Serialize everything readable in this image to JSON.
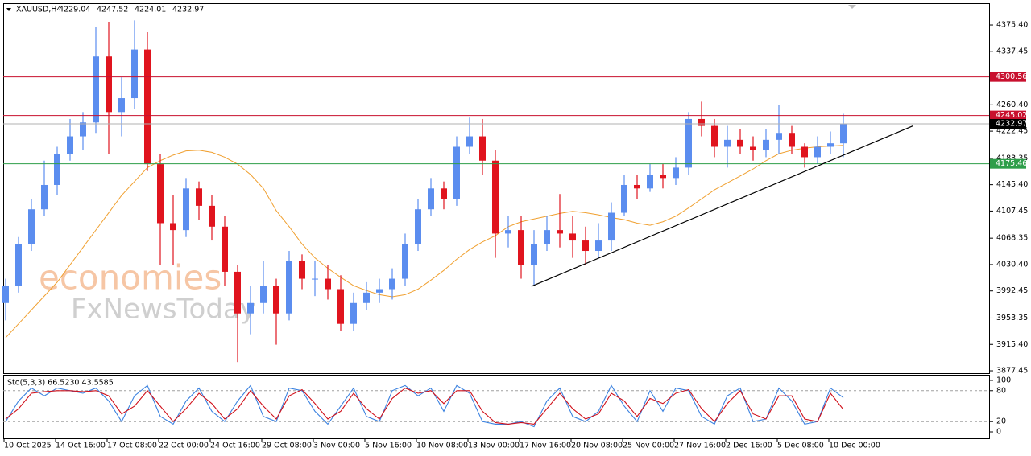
{
  "chart_data": [
    {
      "type": "candlestick",
      "title": "XAUUSD,H4",
      "header_values": [
        4229.04,
        4247.52,
        4224.01,
        4232.97
      ],
      "watermark": [
        "economies",
        "FxNewsToday"
      ],
      "categories": [
        "10 Oct 2025",
        null,
        null,
        null,
        "14 Oct 16:00",
        null,
        null,
        null,
        "17 Oct 08:00",
        null,
        null,
        null,
        "22 Oct 00:00",
        null,
        null,
        null,
        "24 Oct 16:00",
        null,
        null,
        null,
        "29 Oct 08:00",
        null,
        null,
        null,
        "3 Nov 00:00",
        null,
        null,
        null,
        "5 Nov 16:00",
        null,
        null,
        null,
        "10 Nov 08:00",
        null,
        null,
        null,
        "13 Nov 00:00",
        null,
        null,
        null,
        "17 Nov 16:00",
        null,
        null,
        null,
        "20 Nov 08:00",
        null,
        null,
        null,
        "25 Nov 00:00",
        null,
        null,
        null,
        "27 Nov 16:00",
        null,
        null,
        null,
        "2 Dec 16:00",
        null,
        null,
        null,
        "5 Dec 08:00",
        null,
        null,
        null,
        "10 Dec 00:00",
        null
      ],
      "open": [
        3975,
        4000,
        4060,
        4110,
        4145,
        4190,
        4215,
        4235,
        4330,
        4250,
        4270,
        4340,
        4175,
        4090,
        4080,
        4140,
        4115,
        4085,
        4020,
        3960,
        3975,
        4000,
        3960,
        4035,
        4010,
        4010,
        3995,
        3945,
        3975,
        3990,
        3995,
        4010,
        4060,
        4110,
        4140,
        4125,
        4200,
        4215,
        4180,
        4075,
        4080,
        4030,
        4060,
        4080,
        4075,
        4065,
        4050,
        4065,
        4105,
        4145,
        4140,
        4160,
        4155,
        4170,
        4240,
        4230,
        4200,
        4210,
        4200,
        4195,
        4210,
        4220,
        4200,
        4185,
        4200,
        4205
      ],
      "high": [
        4010,
        4070,
        4125,
        4180,
        4200,
        4240,
        4250,
        4372,
        4380,
        4300,
        4382,
        4365,
        4190,
        4130,
        4155,
        4150,
        4130,
        4100,
        4030,
        4000,
        4035,
        4010,
        4050,
        4045,
        4035,
        4030,
        4015,
        3990,
        4005,
        4010,
        4025,
        4075,
        4125,
        4155,
        4150,
        4215,
        4242,
        4240,
        4195,
        4100,
        4100,
        4080,
        4100,
        4132,
        4100,
        4085,
        4090,
        4120,
        4160,
        4160,
        4175,
        4175,
        4185,
        4250,
        4265,
        4240,
        4230,
        4225,
        4215,
        4225,
        4260,
        4230,
        4205,
        4215,
        4222,
        4247.52
      ],
      "low": [
        3950,
        3990,
        4050,
        4100,
        4130,
        4180,
        4195,
        4220,
        4190,
        4215,
        4255,
        4165,
        4030,
        4030,
        4070,
        4095,
        4065,
        4000,
        3890,
        3930,
        3960,
        3915,
        3950,
        3995,
        3985,
        3980,
        3935,
        3935,
        3965,
        3975,
        3980,
        4000,
        4050,
        4100,
        4110,
        4115,
        4190,
        4160,
        4040,
        4055,
        4010,
        4000,
        4050,
        4055,
        4040,
        4030,
        4040,
        4050,
        4100,
        4125,
        4135,
        4140,
        4145,
        4160,
        4215,
        4185,
        4170,
        4190,
        4180,
        4185,
        4190,
        4190,
        4170,
        4175,
        4190,
        4185
      ],
      "close": [
        4000,
        4060,
        4110,
        4145,
        4190,
        4215,
        4235,
        4330,
        4250,
        4270,
        4340,
        4175,
        4090,
        4080,
        4140,
        4115,
        4085,
        4020,
        3960,
        3975,
        4000,
        3960,
        4035,
        4010,
        4010,
        3995,
        3945,
        3975,
        3990,
        3995,
        4010,
        4060,
        4110,
        4140,
        4125,
        4200,
        4215,
        4180,
        4075,
        4080,
        4030,
        4060,
        4080,
        4075,
        4065,
        4050,
        4065,
        4105,
        4145,
        4140,
        4160,
        4155,
        4170,
        4240,
        4230,
        4200,
        4210,
        4200,
        4195,
        4210,
        4220,
        4200,
        4185,
        4200,
        4205,
        4232.97
      ],
      "up_color": "#5b8def",
      "down_color": "#e0141e",
      "moving_average": {
        "color": "#f0a030",
        "values": [
          3925,
          3945,
          3965,
          3985,
          4005,
          4030,
          4055,
          4080,
          4105,
          4130,
          4150,
          4170,
          4180,
          4188,
          4194,
          4195,
          4192,
          4185,
          4175,
          4160,
          4140,
          4108,
          4085,
          4060,
          4040,
          4025,
          4012,
          4000,
          3993,
          3987,
          3984,
          3987,
          3995,
          4008,
          4022,
          4038,
          4052,
          4063,
          4072,
          4085,
          4092,
          4096,
          4100,
          4104,
          4107,
          4105,
          4102,
          4098,
          4095,
          4090,
          4087,
          4092,
          4100,
          4112,
          4125,
          4138,
          4148,
          4158,
          4168,
          4180,
          4190,
          4195,
          4198,
          4200,
          4201,
          4202
        ]
      },
      "levels": [
        {
          "value": 4300.56,
          "color": "#c8102e"
        },
        {
          "value": 4245.02,
          "color": "#c8102e"
        },
        {
          "value": 4232.97,
          "color": "#000000"
        },
        {
          "value": 4175.46,
          "color": "#2e9e4a"
        }
      ],
      "trendline": {
        "x": [
          40.8,
          70.4
        ],
        "values": [
          3999,
          4230
        ],
        "color": "#000000"
      },
      "ylim": [
        3874,
        4406.7
      ],
      "yticks": [
        {
          "value": 4375.4,
          "label": "4375.40"
        },
        4337.45,
        {
          "value": 4260.4,
          "label": "4260.40"
        },
        4222.45,
        4183.35,
        {
          "value": 4145.4,
          "label": "4145.40"
        },
        4107.45,
        4068.35,
        {
          "value": 4030.4,
          "label": "4030.40"
        },
        3992.45,
        3953.35,
        {
          "value": 3915.4,
          "label": "3915.40"
        },
        3877.45
      ]
    },
    {
      "type": "line",
      "title": "Sto(5,3,3) 66.5230 43.5585",
      "series": [
        {
          "color": "#3b82e0",
          "values": [
            20,
            60,
            85,
            70,
            85,
            80,
            75,
            85,
            60,
            20,
            70,
            90,
            30,
            15,
            60,
            85,
            40,
            20,
            60,
            90,
            30,
            20,
            85,
            80,
            40,
            15,
            50,
            85,
            30,
            20,
            80,
            90,
            70,
            85,
            40,
            90,
            75,
            20,
            15,
            15,
            20,
            10,
            60,
            85,
            30,
            20,
            40,
            90,
            50,
            20,
            80,
            40,
            85,
            80,
            30,
            15,
            70,
            85,
            20,
            25,
            85,
            60,
            15,
            20,
            85,
            66.523
          ]
        },
        {
          "color": "#d0101a",
          "values": [
            25,
            45,
            75,
            78,
            80,
            80,
            78,
            80,
            70,
            35,
            50,
            80,
            50,
            20,
            45,
            75,
            55,
            25,
            45,
            80,
            50,
            25,
            70,
            82,
            55,
            25,
            40,
            75,
            45,
            25,
            65,
            85,
            75,
            80,
            55,
            80,
            80,
            40,
            18,
            15,
            18,
            15,
            45,
            75,
            45,
            25,
            35,
            75,
            60,
            30,
            65,
            55,
            75,
            82,
            45,
            20,
            55,
            80,
            35,
            25,
            70,
            70,
            25,
            20,
            75,
            43.5585
          ]
        }
      ],
      "ylim": [
        -12.5,
        110.9
      ],
      "yticks": [
        100,
        80,
        20,
        0
      ],
      "grid_levels": [
        80,
        20
      ]
    }
  ]
}
